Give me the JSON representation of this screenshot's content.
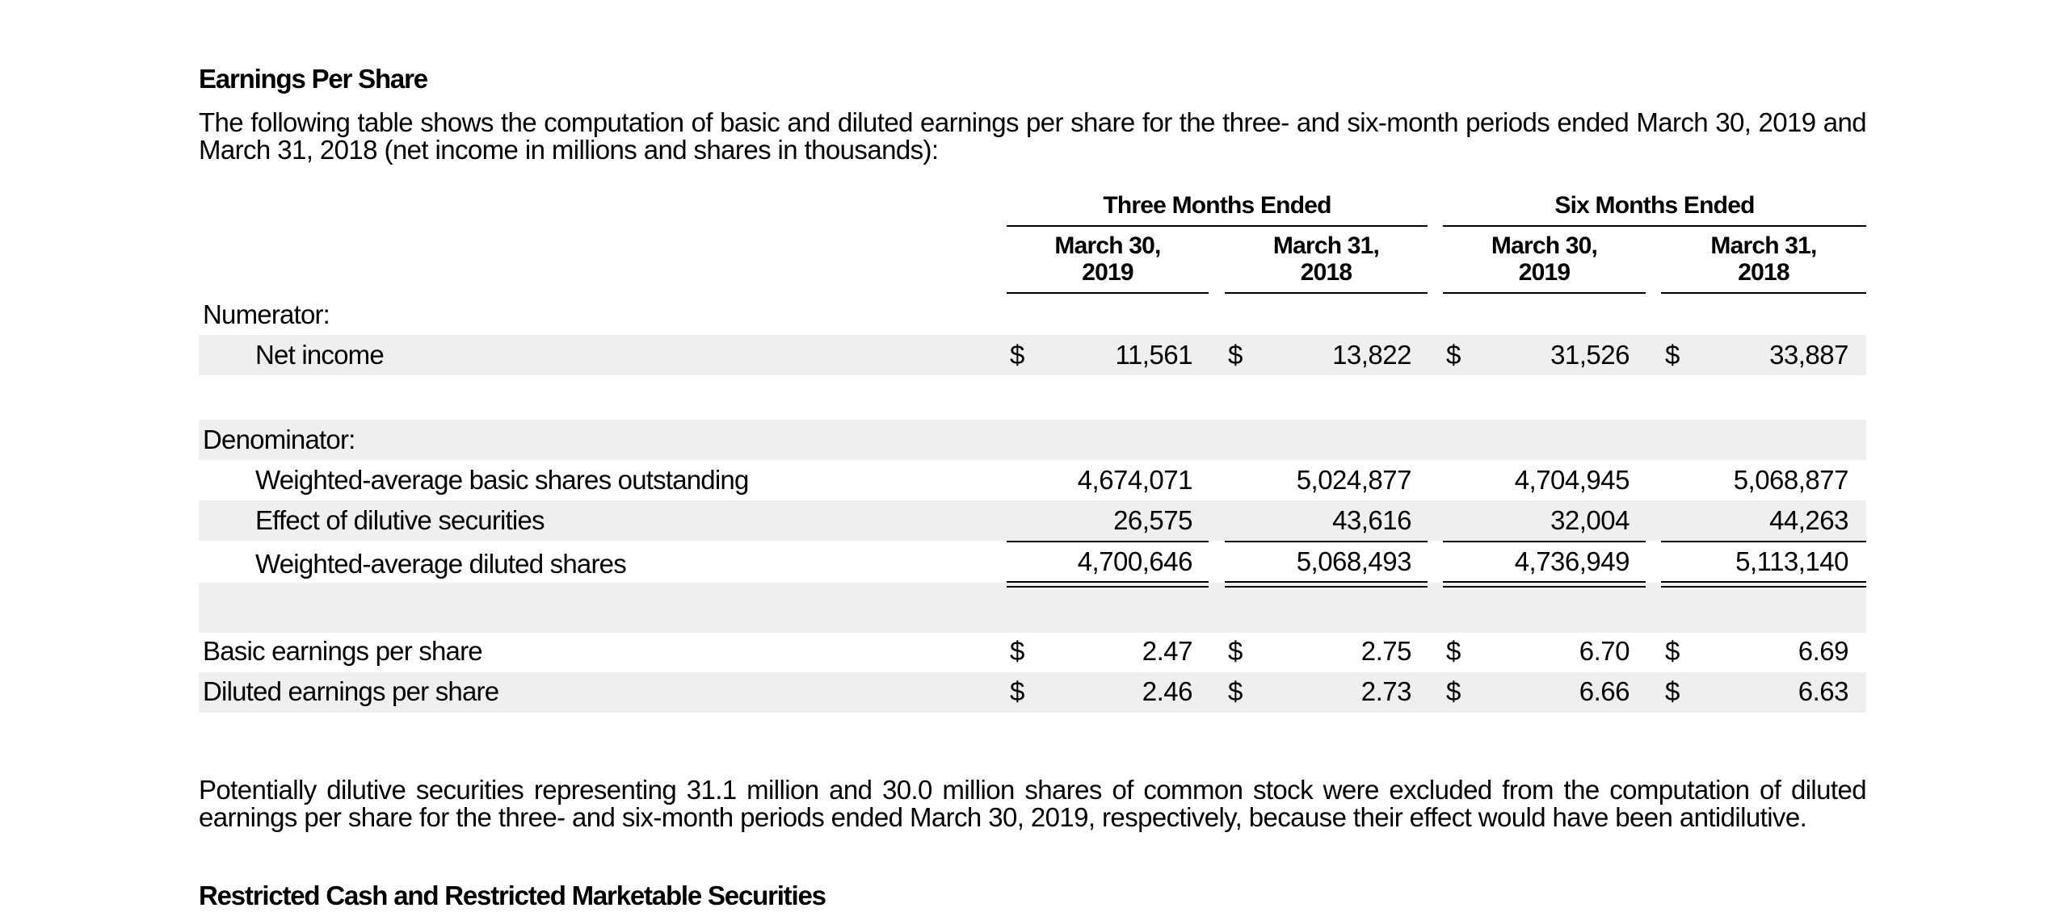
{
  "heading": "Earnings Per Share",
  "intro": {
    "line1": "The following table shows the computation of basic and diluted earnings per share for the three- and six-month periods ended March 30, 2019 and",
    "line2": "March 31, 2018 (net income in millions and shares in thousands):"
  },
  "table": {
    "groups": [
      "Three Months Ended",
      "Six Months Ended"
    ],
    "columns": [
      {
        "date": "March 30,",
        "year": "2019"
      },
      {
        "date": "March 31,",
        "year": "2018"
      },
      {
        "date": "March 30,",
        "year": "2019"
      },
      {
        "date": "March 31,",
        "year": "2018"
      }
    ],
    "currency": "$",
    "numerator_label": "Numerator:",
    "denominator_label": "Denominator:",
    "rows": {
      "net_income": {
        "label": "Net income",
        "values": [
          "11,561",
          "13,822",
          "31,526",
          "33,887"
        ]
      },
      "basic_shares": {
        "label": "Weighted-average basic shares outstanding",
        "values": [
          "4,674,071",
          "5,024,877",
          "4,704,945",
          "5,068,877"
        ]
      },
      "dilutive": {
        "label": "Effect of dilutive securities",
        "values": [
          "26,575",
          "43,616",
          "32,004",
          "44,263"
        ]
      },
      "diluted_shares": {
        "label": "Weighted-average diluted shares",
        "values": [
          "4,700,646",
          "5,068,493",
          "4,736,949",
          "5,113,140"
        ]
      },
      "basic_eps": {
        "label": "Basic earnings per share",
        "values": [
          "2.47",
          "2.75",
          "6.70",
          "6.69"
        ]
      },
      "diluted_eps": {
        "label": "Diluted earnings per share",
        "values": [
          "2.46",
          "2.73",
          "6.66",
          "6.63"
        ]
      }
    }
  },
  "note": {
    "line1": "Potentially dilutive securities representing 31.1 million  and 30.0 million shares of common stock were excluded from the computation of diluted",
    "line2": "earnings per share for the three- and six-month periods ended March 30, 2019, respectively, because their effect would have been antidilutive."
  },
  "next_heading": "Restricted Cash and Restricted Marketable Securities"
}
